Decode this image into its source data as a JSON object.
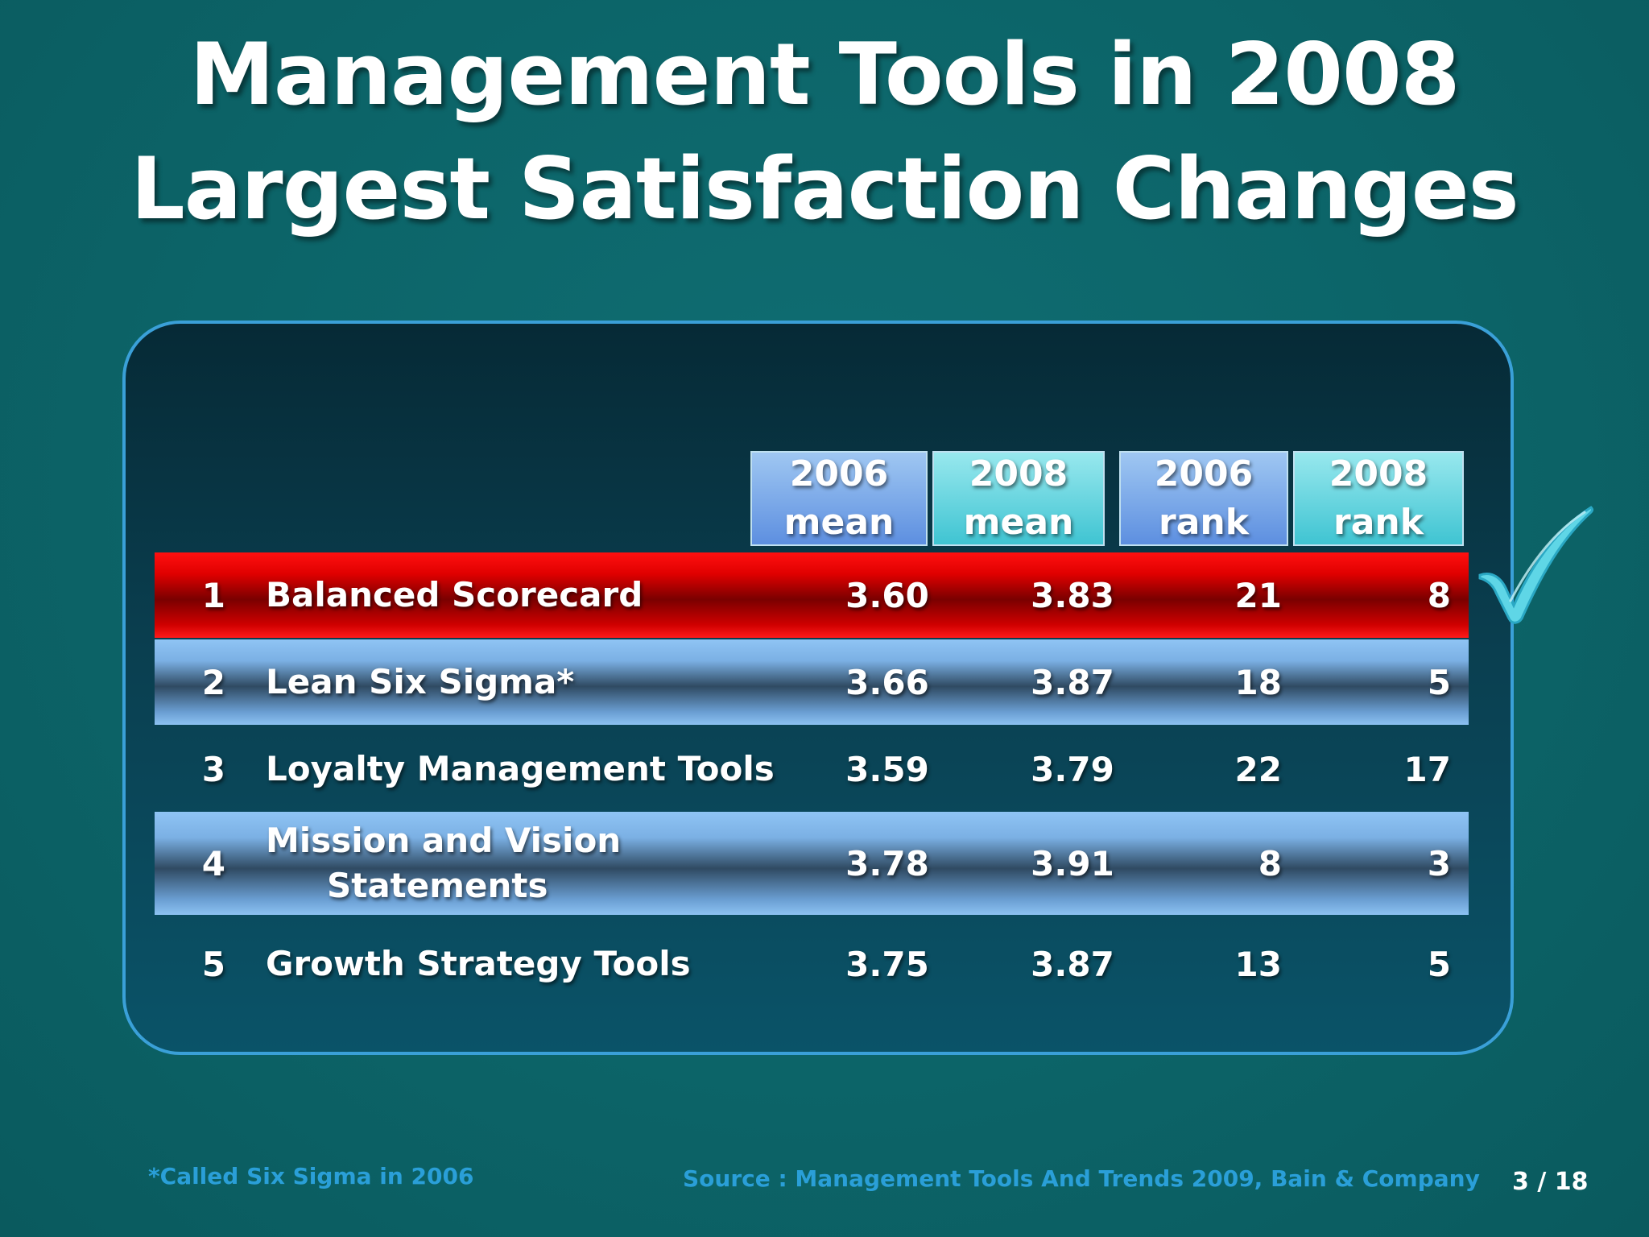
{
  "slide": {
    "title_line1": "Management Tools in 2008",
    "title_line2": "Largest Satisfaction Changes"
  },
  "table": {
    "headers": [
      {
        "line1": "2006",
        "line2": "mean"
      },
      {
        "line1": "2008",
        "line2": "mean"
      },
      {
        "line1": "2006",
        "line2": "rank"
      },
      {
        "line1": "2008",
        "line2": "rank"
      }
    ],
    "rows": [
      {
        "num": "1",
        "tool_line1": "Balanced Scorecard",
        "tool_line2": "",
        "mean_2006": "3.60",
        "mean_2008": "3.83",
        "rank_2006": "21",
        "rank_2008": "8"
      },
      {
        "num": "2",
        "tool_line1": "Lean Six Sigma*",
        "tool_line2": "",
        "mean_2006": "3.66",
        "mean_2008": "3.87",
        "rank_2006": "18",
        "rank_2008": "5"
      },
      {
        "num": "3",
        "tool_line1": "Loyalty Management Tools",
        "tool_line2": "",
        "mean_2006": "3.59",
        "mean_2008": "3.79",
        "rank_2006": "22",
        "rank_2008": "17"
      },
      {
        "num": "4",
        "tool_line1": "Mission and Vision",
        "tool_line2": "Statements",
        "mean_2006": "3.78",
        "mean_2008": "3.91",
        "rank_2006": "8",
        "rank_2008": "3"
      },
      {
        "num": "5",
        "tool_line1": "Growth Strategy Tools",
        "tool_line2": "",
        "mean_2006": "3.75",
        "mean_2008": "3.87",
        "rank_2006": "13",
        "rank_2008": "5"
      }
    ]
  },
  "highlight": {
    "icon": "checkmark-icon",
    "color": "#5fd6e6",
    "row_color": "#e00000"
  },
  "footer": {
    "footnote": "*Called Six Sigma in 2006",
    "source": "Source : Management Tools And Trends 2009, Bain & Company",
    "page": "3 / 18"
  }
}
